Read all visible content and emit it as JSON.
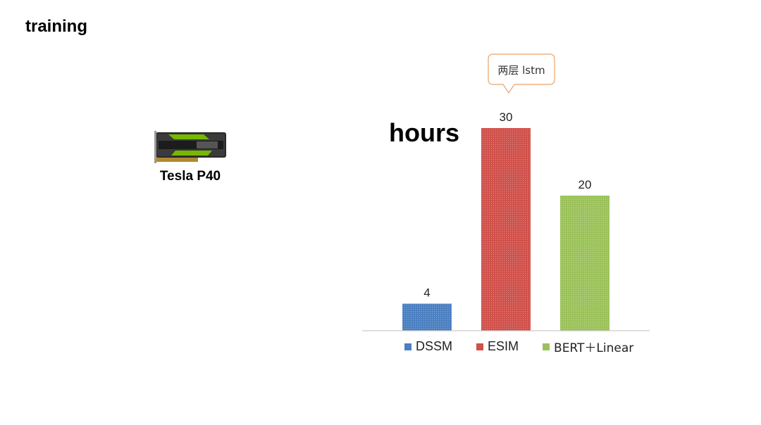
{
  "slide": {
    "title": "training"
  },
  "hardware": {
    "label": "Tesla P40"
  },
  "callout": {
    "text": "两层 lstm"
  },
  "chart_data": {
    "type": "bar",
    "categories": [
      "DSSM",
      "ESIM",
      "BERT＋Linear"
    ],
    "values": [
      4,
      30,
      20
    ],
    "ylabel": "hours",
    "ylim": [
      0,
      30
    ],
    "grid": false,
    "legend": "bottom",
    "colors": [
      "#4a7fc1",
      "#d0504a",
      "#9bc25a"
    ],
    "data_labels": [
      "4",
      "30",
      "20"
    ]
  }
}
